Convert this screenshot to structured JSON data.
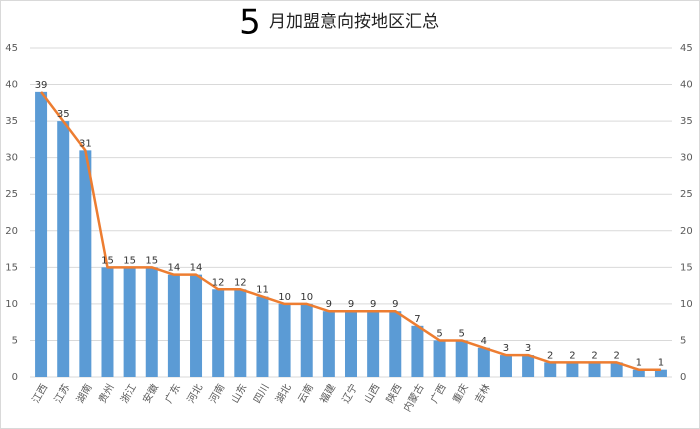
{
  "chart_data": {
    "type": "bar_line",
    "title_prefix": "5",
    "title": "月加盟意向按地区汇总",
    "categories": [
      "江西",
      "江苏",
      "湖南",
      "贵州",
      "浙江",
      "安徽",
      "广东",
      "河北",
      "河南",
      "山东",
      "四川",
      "湖北",
      "云南",
      "福建",
      "辽宁",
      "山西",
      "陕西",
      "内蒙古",
      "广西",
      "重庆",
      "吉林",
      null,
      null,
      null,
      null,
      null,
      null,
      null,
      null
    ],
    "values": [
      39,
      35,
      31,
      15,
      15,
      15,
      14,
      14,
      12,
      12,
      11,
      10,
      10,
      9,
      9,
      9,
      9,
      7,
      5,
      5,
      4,
      3,
      3,
      2,
      2,
      2,
      2,
      1,
      1
    ],
    "color": "#5b9bd5",
    "line_color": "#ed7d31",
    "ylim": [
      0,
      45
    ],
    "yticks": [
      0,
      5,
      10,
      15,
      20,
      25,
      30,
      35,
      40,
      45
    ],
    "y2lim": [
      0,
      45
    ],
    "y2ticks": [
      0,
      5,
      10,
      15,
      20,
      25,
      30,
      35,
      40,
      45
    ],
    "grid": true
  }
}
